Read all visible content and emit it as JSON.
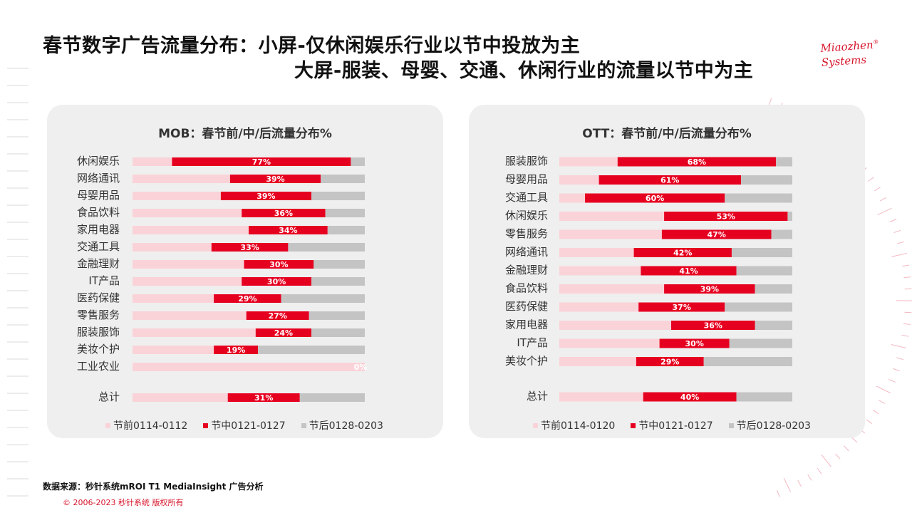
{
  "title": {
    "line1": "春节数字广告流量分布：小屏-仅休闲娱乐行业以节中投放为主",
    "line2": "大屏-服装、母婴、交通、休闲行业的流量以节中为主"
  },
  "logo": {
    "line1": "Miaozhen",
    "line2": "Systems",
    "mark": "®"
  },
  "colors": {
    "pre": "#fad3d9",
    "mid": "#e60020",
    "post": "#c4c4c4",
    "panel": "#efefef",
    "accent": "#d6142a"
  },
  "chart_data": [
    {
      "type": "bar",
      "orientation": "horizontal-stacked-100",
      "title": "MOB：春节前/中/后流量分布%",
      "categories": [
        "休闲娱乐",
        "网络通讯",
        "母婴用品",
        "食品饮料",
        "家用电器",
        "交通工具",
        "金融理财",
        "IT产品",
        "医药保健",
        "零售服务",
        "服装服饰",
        "美妆个护",
        "工业农业"
      ],
      "total_label": "总计",
      "series": [
        {
          "name": "节前0114-0112",
          "values": [
            17,
            42,
            38,
            47,
            50,
            34,
            48,
            47,
            35,
            49,
            53,
            35,
            100
          ]
        },
        {
          "name": "节中0121-0127",
          "values": [
            77,
            39,
            39,
            36,
            34,
            33,
            30,
            30,
            29,
            27,
            24,
            19,
            0
          ]
        },
        {
          "name": "节后0128-0203",
          "values": [
            6,
            19,
            23,
            17,
            16,
            33,
            22,
            23,
            36,
            24,
            23,
            46,
            0
          ]
        }
      ],
      "total": [
        41,
        31,
        28
      ],
      "mid_labels": [
        "77%",
        "39%",
        "39%",
        "36%",
        "34%",
        "33%",
        "30%",
        "30%",
        "29%",
        "27%",
        "24%",
        "19%",
        "0%"
      ],
      "total_mid_label": "31%",
      "xlim": [
        0,
        100
      ]
    },
    {
      "type": "bar",
      "orientation": "horizontal-stacked-100",
      "title": "OTT：春节前/中/后流量分布%",
      "categories": [
        "服装服饰",
        "母婴用品",
        "交通工具",
        "休闲娱乐",
        "零售服务",
        "网络通讯",
        "金融理财",
        "食品饮料",
        "医药保健",
        "家用电器",
        "IT产品",
        "美妆个护"
      ],
      "total_label": "总计",
      "series": [
        {
          "name": "节前0114-0120",
          "values": [
            25,
            17,
            11,
            45,
            44,
            32,
            35,
            45,
            34,
            48,
            43,
            33
          ]
        },
        {
          "name": "节中0121-0127",
          "values": [
            68,
            61,
            60,
            53,
            47,
            42,
            41,
            39,
            37,
            36,
            30,
            29
          ]
        },
        {
          "name": "节后0128-0203",
          "values": [
            7,
            22,
            29,
            2,
            9,
            26,
            24,
            16,
            29,
            16,
            27,
            38
          ]
        }
      ],
      "total": [
        36,
        40,
        24
      ],
      "mid_labels": [
        "68%",
        "61%",
        "60%",
        "53%",
        "47%",
        "42%",
        "41%",
        "39%",
        "37%",
        "36%",
        "30%",
        "29%"
      ],
      "total_mid_label": "40%",
      "xlim": [
        0,
        100
      ]
    }
  ],
  "footer": {
    "source": "数据来源：秒针系统mROI T1 MediaInsight   广告分析",
    "copyright": "© 2006-2023 秒针系统 版权所有"
  }
}
